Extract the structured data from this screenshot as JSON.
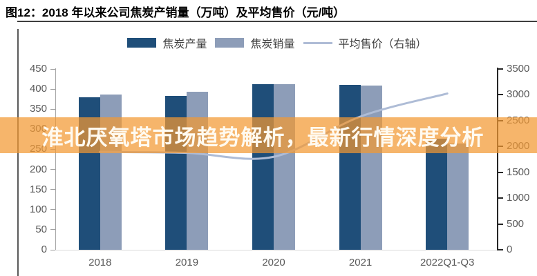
{
  "page": {
    "title": "图12：2018 年以来公司焦炭产销量（万吨）及平均售价（元/吨）"
  },
  "overlay": {
    "text": "淮北厌氧塔市场趋势解析，最新行情深度分析",
    "background_color": "rgba(242,153,50,0.72)",
    "text_color": "#FFFAF0"
  },
  "legend": {
    "items": [
      {
        "label": "焦炭产量",
        "swatch": "bar",
        "color": "#1F4E79"
      },
      {
        "label": "焦炭销量",
        "swatch": "bar",
        "color": "#8D9DB8"
      },
      {
        "label": "平均售价（右轴）",
        "swatch": "line",
        "color": "#AEBCD6"
      }
    ]
  },
  "chart_data": {
    "type": "bar",
    "subtype": "grouped bars with overlay line on secondary axis",
    "title": "图12：2018 年以来公司焦炭产销量（万吨）及平均售价（元/吨）",
    "categories": [
      "2018",
      "2019",
      "2020",
      "2021",
      "2022Q1-Q3"
    ],
    "series": [
      {
        "name": "焦炭产量",
        "type": "bar",
        "axis": "left",
        "color": "#1F4E79",
        "values": [
          380,
          383,
          413,
          410,
          277
        ]
      },
      {
        "name": "焦炭销量",
        "type": "bar",
        "axis": "left",
        "color": "#8D9DB8",
        "values": [
          386,
          394,
          413,
          408,
          265
        ]
      },
      {
        "name": "平均售价（右轴）",
        "type": "line",
        "axis": "right",
        "color": "#AEBCD6",
        "values": [
          1895,
          1875,
          1800,
          2580,
          3025
        ]
      }
    ],
    "left_axis": {
      "min": 0,
      "max": 450,
      "step": 50,
      "ticks": [
        450,
        400,
        350,
        300,
        250,
        200,
        150,
        100,
        50,
        0
      ]
    },
    "right_axis": {
      "min": 0,
      "max": 3500,
      "step": 500,
      "ticks": [
        3500,
        3000,
        2500,
        2000,
        1500,
        1000,
        500,
        0
      ]
    },
    "grid": false,
    "legend_position": "top",
    "xlabel": "",
    "ylabel_left": "万吨",
    "ylabel_right": "元/吨"
  }
}
